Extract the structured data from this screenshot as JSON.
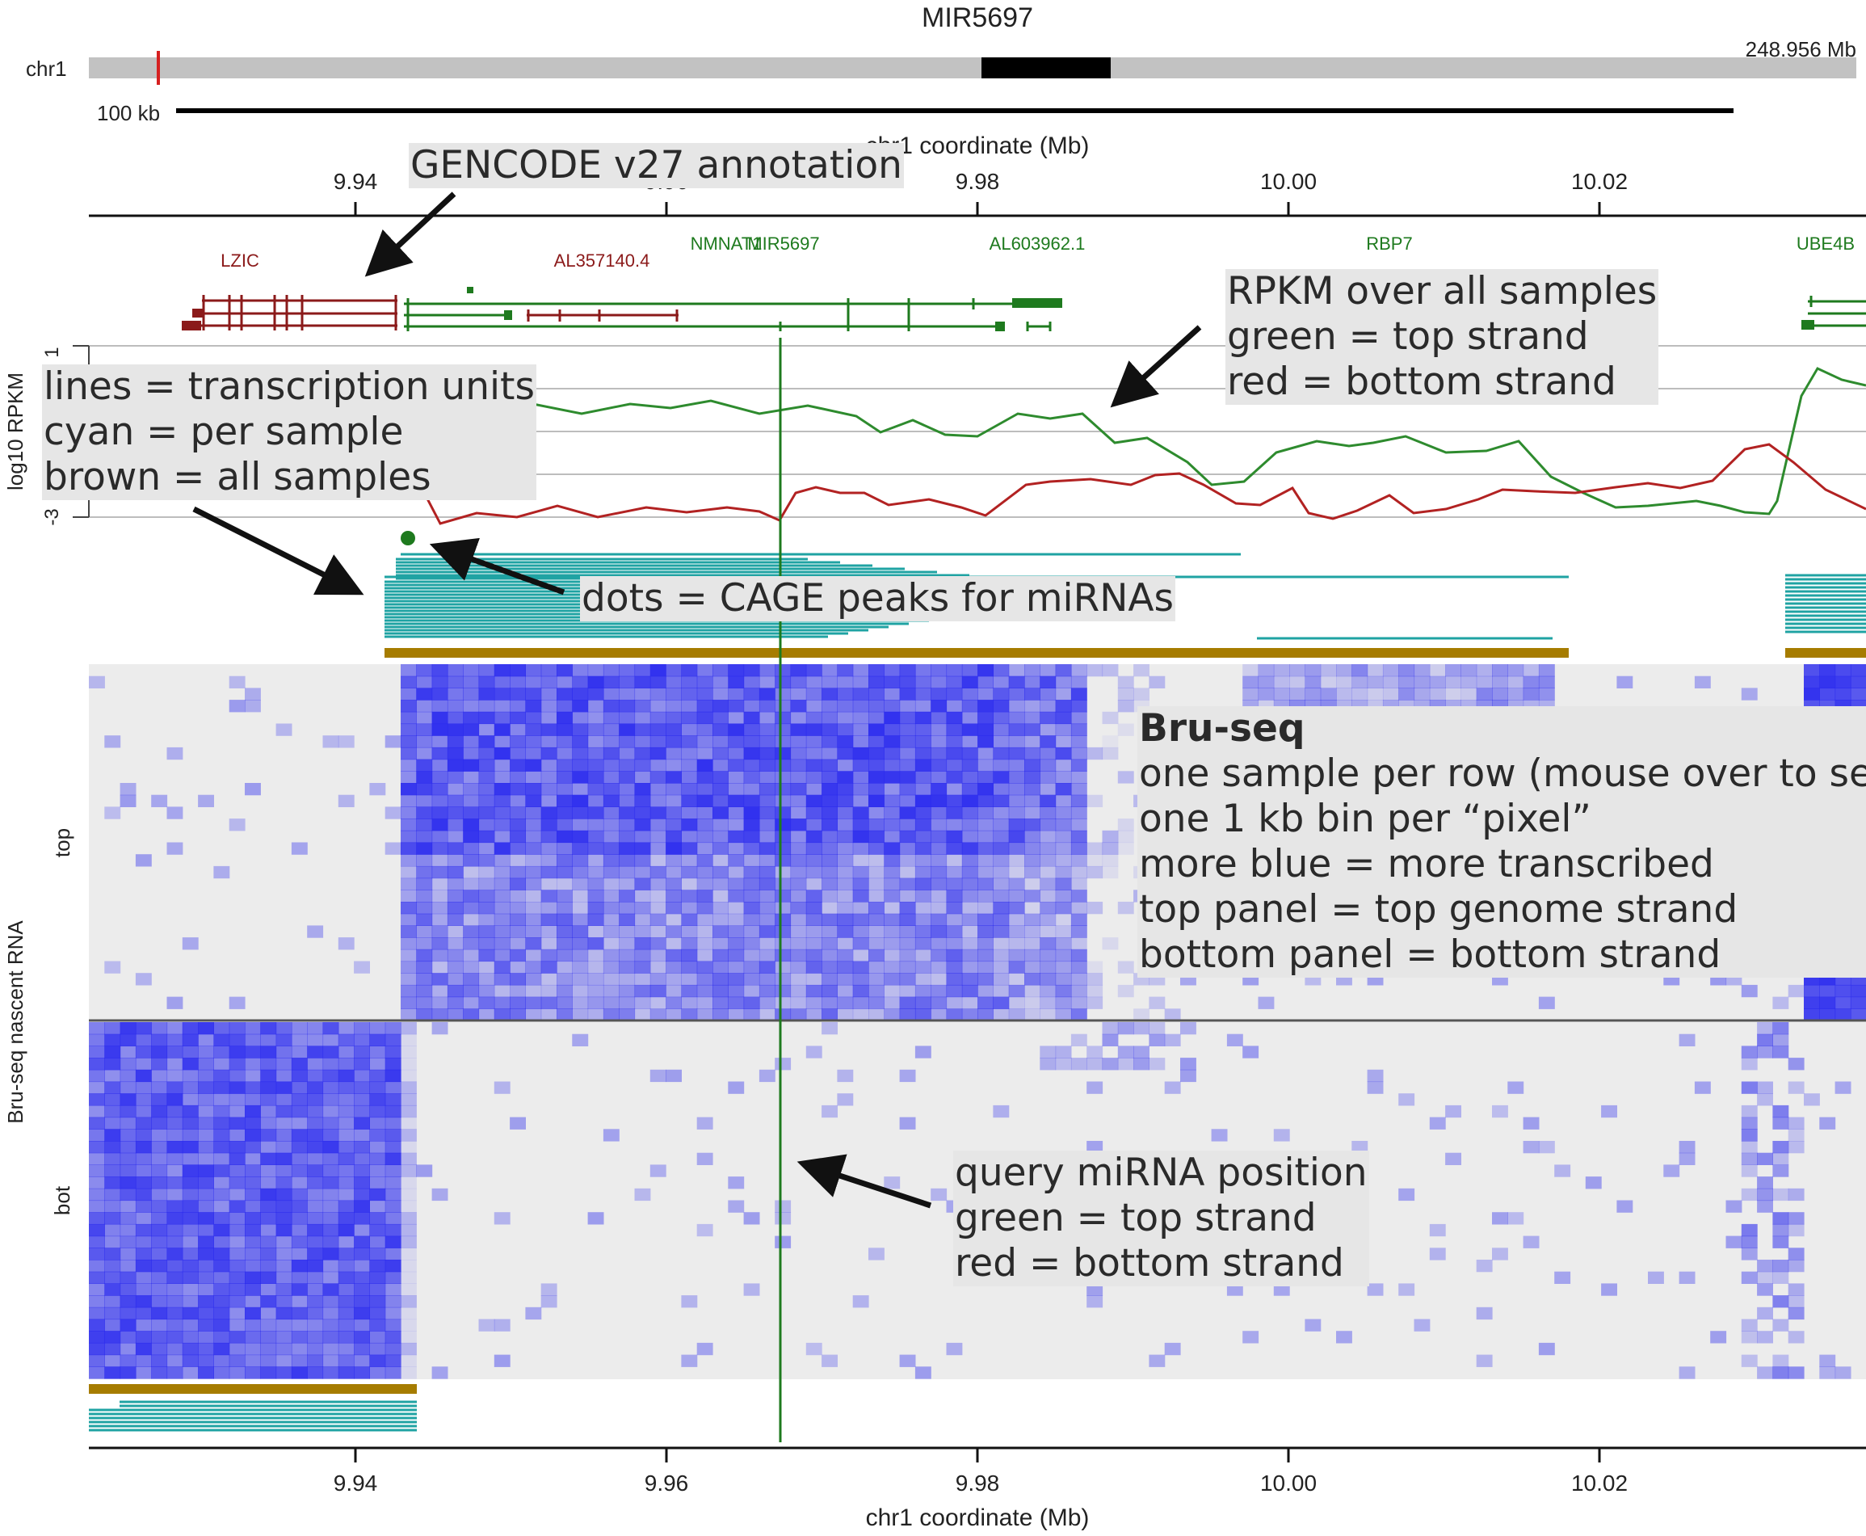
{
  "title": "MIR5697",
  "ideogram": {
    "chrom_label": "chr1",
    "length_label": "248.956 Mb",
    "scale_label": "100 kb"
  },
  "axis": {
    "label": "chr1 coordinate (Mb)",
    "ticks": [
      "9.94",
      "9.96",
      "9.98",
      "10.00",
      "10.02"
    ]
  },
  "genes": [
    {
      "name": "LZIC",
      "color": "#8b1a1a"
    },
    {
      "name": "AL357140.4",
      "color": "#8b1a1a"
    },
    {
      "name": "NMNAT1",
      "color": "#1e7a1e"
    },
    {
      "name": "MIR5697",
      "color": "#1e7a1e"
    },
    {
      "name": "AL603962.1",
      "color": "#1e7a1e"
    },
    {
      "name": "RBP7",
      "color": "#1e7a1e"
    },
    {
      "name": "UBE4B",
      "color": "#1e7a1e"
    }
  ],
  "rpkm": {
    "ylabel": "log10 RPKM",
    "ymax_label": "1",
    "ymin_label": "-3",
    "top_color": "#2e8b2e",
    "bottom_color": "#b22222"
  },
  "heatmap": {
    "ylabel": "Bru-seq nascent RNA",
    "top_label": "top",
    "bottom_label": "bot",
    "color": "#2a2aee"
  },
  "colors": {
    "transcription_unit_cyan": "#1fa3a3",
    "transcription_unit_brown": "#a67c00",
    "query_line": "#1e7a1e",
    "cage_dot": "#1e7a1e"
  },
  "annotations": {
    "gencode": "GENCODE v27 annotation",
    "rpkm": [
      "RPKM over all samples",
      "green = top strand",
      "red = bottom strand"
    ],
    "lines": [
      "lines = transcription units",
      "cyan = per sample",
      "brown = all samples"
    ],
    "dots": "dots = CAGE peaks for miRNAs",
    "bruseq_title": "Bru-seq",
    "bruseq": [
      "one sample per row (mouse over to see)",
      "one 1 kb bin per “pixel”",
      "more blue = more transcribed",
      "top panel = top genome strand",
      "bottom panel = bottom strand"
    ],
    "query": [
      "query miRNA position",
      "green = top strand",
      "red = bottom strand"
    ]
  }
}
